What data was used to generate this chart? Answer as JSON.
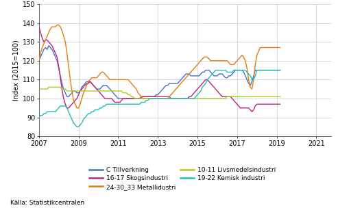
{
  "title": "",
  "ylabel": "Index (2015=100)",
  "ylim": [
    80,
    150
  ],
  "yticks": [
    80,
    90,
    100,
    110,
    120,
    130,
    140,
    150
  ],
  "xlim": [
    2007.0,
    2021.75
  ],
  "xticks": [
    2007,
    2009,
    2011,
    2013,
    2015,
    2017,
    2019,
    2021
  ],
  "xticklabels": [
    "2007",
    "2009",
    "2011",
    "2013",
    "2015",
    "2017",
    "2019",
    "2021"
  ],
  "source": "Källa: Statistikcentralen",
  "legend": [
    {
      "label": "C Tillverkning",
      "color": "#4472C4"
    },
    {
      "label": "16-17 Skogsindustri",
      "color": "#BF2082"
    },
    {
      "label": "24-30_33 Metallidustri",
      "color": "#E87A10"
    },
    {
      "label": "10-11 Livsmedelsindustri",
      "color": "#AACC22"
    },
    {
      "label": "19-22 Kemisk industri",
      "color": "#22BBBB"
    }
  ],
  "series": {
    "C_Tillverkning": [
      120,
      122,
      124,
      126,
      127,
      126,
      128,
      127,
      126,
      124,
      122,
      120,
      116,
      112,
      108,
      105,
      103,
      101,
      101,
      102,
      103,
      104,
      104,
      103,
      103,
      104,
      106,
      107,
      108,
      109,
      109,
      109,
      108,
      107,
      106,
      105,
      105,
      105,
      106,
      107,
      107,
      107,
      106,
      105,
      104,
      103,
      102,
      101,
      100,
      100,
      100,
      100,
      100,
      100,
      100,
      100,
      100,
      100,
      100,
      100,
      100,
      100,
      100,
      101,
      101,
      101,
      101,
      101,
      101,
      101,
      101,
      102,
      102,
      103,
      104,
      105,
      106,
      107,
      107,
      108,
      108,
      108,
      108,
      108,
      108,
      109,
      110,
      111,
      112,
      113,
      113,
      113,
      112,
      112,
      112,
      112,
      112,
      112,
      113,
      114,
      114,
      115,
      115,
      115,
      114,
      113,
      112,
      112,
      112,
      113,
      113,
      113,
      112,
      111,
      111,
      112,
      112,
      113,
      114,
      115,
      115,
      115,
      115,
      115,
      114,
      112,
      110,
      108,
      107,
      109,
      112,
      115,
      115,
      115,
      115,
      115,
      115,
      115,
      115,
      115,
      115,
      115,
      115,
      115,
      115,
      115,
      115
    ],
    "Skogsindustri": [
      138,
      135,
      132,
      130,
      131,
      131,
      130,
      129,
      128,
      126,
      124,
      122,
      117,
      111,
      105,
      100,
      97,
      95,
      95,
      96,
      97,
      98,
      99,
      100,
      102,
      104,
      105,
      106,
      107,
      108,
      108,
      109,
      108,
      107,
      106,
      105,
      104,
      103,
      102,
      101,
      100,
      100,
      100,
      100,
      100,
      99,
      98,
      98,
      98,
      98,
      99,
      100,
      100,
      100,
      100,
      100,
      100,
      100,
      100,
      100,
      100,
      100,
      101,
      101,
      101,
      101,
      101,
      101,
      101,
      101,
      101,
      101,
      101,
      101,
      101,
      101,
      101,
      101,
      101,
      101,
      100,
      100,
      100,
      100,
      100,
      100,
      100,
      100,
      100,
      100,
      100,
      101,
      101,
      102,
      103,
      104,
      105,
      106,
      107,
      108,
      109,
      110,
      110,
      109,
      108,
      107,
      106,
      105,
      104,
      103,
      102,
      101,
      101,
      101,
      101,
      101,
      101,
      100,
      99,
      98,
      97,
      96,
      95,
      95,
      95,
      95,
      95,
      95,
      94,
      93,
      94,
      96,
      97,
      97,
      97,
      97,
      97,
      97,
      97,
      97,
      97,
      97,
      97,
      97,
      97,
      97,
      97
    ],
    "Metallidustri": [
      120,
      124,
      127,
      129,
      131,
      133,
      135,
      137,
      138,
      138,
      138,
      139,
      139,
      138,
      136,
      133,
      130,
      124,
      117,
      110,
      104,
      99,
      97,
      95,
      95,
      97,
      100,
      103,
      105,
      107,
      109,
      110,
      111,
      111,
      111,
      111,
      112,
      113,
      114,
      114,
      113,
      112,
      111,
      110,
      110,
      110,
      110,
      110,
      110,
      110,
      110,
      110,
      110,
      110,
      110,
      109,
      108,
      107,
      106,
      105,
      103,
      102,
      101,
      100,
      100,
      100,
      100,
      100,
      100,
      100,
      100,
      100,
      100,
      100,
      100,
      100,
      100,
      100,
      100,
      101,
      102,
      103,
      104,
      105,
      106,
      107,
      108,
      109,
      110,
      111,
      112,
      113,
      114,
      115,
      116,
      117,
      118,
      119,
      120,
      121,
      122,
      122,
      122,
      121,
      120,
      120,
      120,
      120,
      120,
      120,
      120,
      120,
      120,
      120,
      120,
      119,
      118,
      118,
      118,
      119,
      120,
      121,
      122,
      123,
      122,
      120,
      116,
      110,
      106,
      105,
      110,
      118,
      123,
      125,
      127,
      127,
      127,
      127,
      127,
      127,
      127,
      127,
      127,
      127,
      127,
      127,
      127
    ],
    "Livsmedelsindustri": [
      105,
      105,
      105,
      105,
      105,
      105,
      106,
      106,
      106,
      106,
      106,
      106,
      106,
      106,
      105,
      105,
      105,
      104,
      104,
      104,
      104,
      104,
      104,
      104,
      104,
      104,
      104,
      104,
      104,
      104,
      104,
      104,
      104,
      104,
      104,
      104,
      104,
      104,
      104,
      104,
      104,
      104,
      104,
      104,
      104,
      104,
      104,
      104,
      104,
      104,
      104,
      103,
      103,
      103,
      102,
      102,
      101,
      101,
      100,
      100,
      100,
      100,
      100,
      100,
      100,
      100,
      100,
      100,
      100,
      100,
      100,
      100,
      100,
      100,
      100,
      100,
      100,
      100,
      100,
      100,
      100,
      100,
      100,
      100,
      100,
      100,
      100,
      100,
      100,
      100,
      100,
      100,
      100,
      100,
      100,
      100,
      100,
      100,
      100,
      100,
      100,
      100,
      100,
      100,
      100,
      100,
      100,
      100,
      100,
      100,
      100,
      100,
      100,
      100,
      101,
      101,
      101,
      101,
      101,
      101,
      101,
      101,
      101,
      101,
      101,
      101,
      101,
      101,
      101,
      101,
      101,
      101,
      101,
      101,
      101,
      101,
      101,
      101,
      101,
      101,
      101,
      101,
      101,
      101,
      101,
      101,
      101
    ],
    "Kemiskindustri": [
      90,
      91,
      91,
      92,
      92,
      93,
      93,
      93,
      93,
      93,
      93,
      94,
      95,
      96,
      96,
      96,
      96,
      95,
      93,
      91,
      89,
      87,
      86,
      85,
      85,
      86,
      87,
      89,
      90,
      91,
      92,
      92,
      93,
      93,
      94,
      94,
      94,
      95,
      95,
      96,
      96,
      97,
      97,
      97,
      97,
      97,
      97,
      97,
      97,
      97,
      97,
      97,
      97,
      97,
      97,
      97,
      97,
      97,
      97,
      97,
      97,
      97,
      98,
      98,
      98,
      99,
      99,
      100,
      100,
      100,
      100,
      100,
      100,
      100,
      100,
      100,
      100,
      100,
      100,
      100,
      100,
      100,
      100,
      100,
      100,
      100,
      100,
      100,
      100,
      100,
      100,
      100,
      100,
      100,
      100,
      101,
      102,
      103,
      104,
      106,
      107,
      108,
      110,
      111,
      112,
      113,
      114,
      115,
      115,
      115,
      115,
      115,
      115,
      115,
      114,
      114,
      114,
      114,
      115,
      115,
      115,
      115,
      115,
      115,
      115,
      115,
      114,
      113,
      112,
      110,
      110,
      112,
      115,
      115,
      115,
      115,
      115,
      115,
      115,
      115,
      115,
      115,
      115,
      115,
      115,
      115,
      115
    ]
  }
}
